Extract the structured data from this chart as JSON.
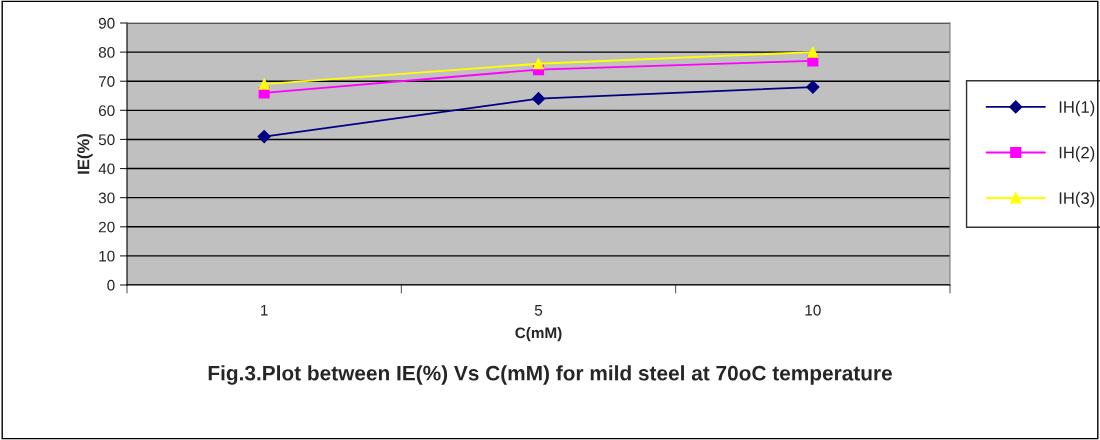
{
  "chart_data": {
    "type": "line",
    "title": "Fig.3.Plot between IE(%) Vs C(mM) for mild steel at 70oC temperature",
    "xlabel": "C(mM)",
    "ylabel": "IE(%)",
    "categories": [
      "1",
      "5",
      "10"
    ],
    "series": [
      {
        "name": "IH(1)",
        "color": "#000080",
        "marker": "diamond",
        "values": [
          51,
          64,
          68
        ]
      },
      {
        "name": "IH(2)",
        "color": "#ff00ff",
        "marker": "square",
        "values": [
          66,
          74,
          77
        ]
      },
      {
        "name": "IH(3)",
        "color": "#ffff00",
        "marker": "triangle",
        "values": [
          69,
          76,
          80
        ]
      }
    ],
    "ylim": [
      0,
      90
    ],
    "yticks": [
      0,
      10,
      20,
      30,
      40,
      50,
      60,
      70,
      80,
      90
    ],
    "grid": "y",
    "legend": "right",
    "line_style": "solid"
  }
}
